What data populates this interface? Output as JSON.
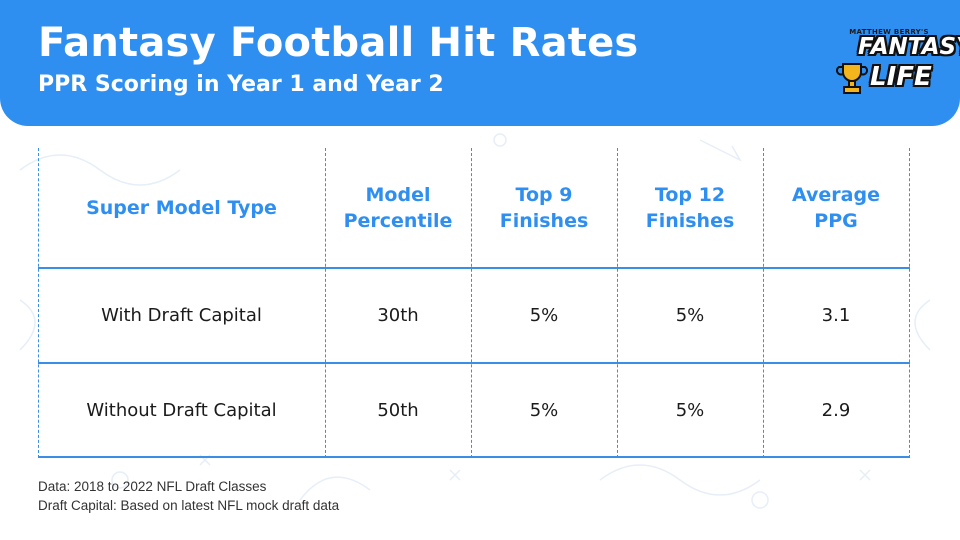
{
  "header": {
    "title": "Fantasy Football Hit Rates",
    "subtitle": "PPR Scoring in Year 1 and Year 2"
  },
  "logo": {
    "small_text": "MATTHEW BERRY'S",
    "line1": "FANTASY",
    "line2": "LIFE",
    "icon": "trophy-icon"
  },
  "table": {
    "headers": [
      "Super Model Type",
      "Model Percentile",
      "Top 9 Finishes",
      "Top 12 Finishes",
      "Average PPG"
    ],
    "rows": [
      [
        "With Draft Capital",
        "30th",
        "5%",
        "5%",
        "3.1"
      ],
      [
        "Without Draft Capital",
        "50th",
        "5%",
        "5%",
        "2.9"
      ]
    ]
  },
  "source": {
    "line1": "Data: 2018 to 2022 NFL Draft Classes",
    "line2": "Draft Capital: Based on latest NFL mock draft data"
  },
  "colors": {
    "brand_blue": "#2f8ff0",
    "line_blue": "#3a8ee6",
    "text_dark": "#1b1b1b"
  }
}
